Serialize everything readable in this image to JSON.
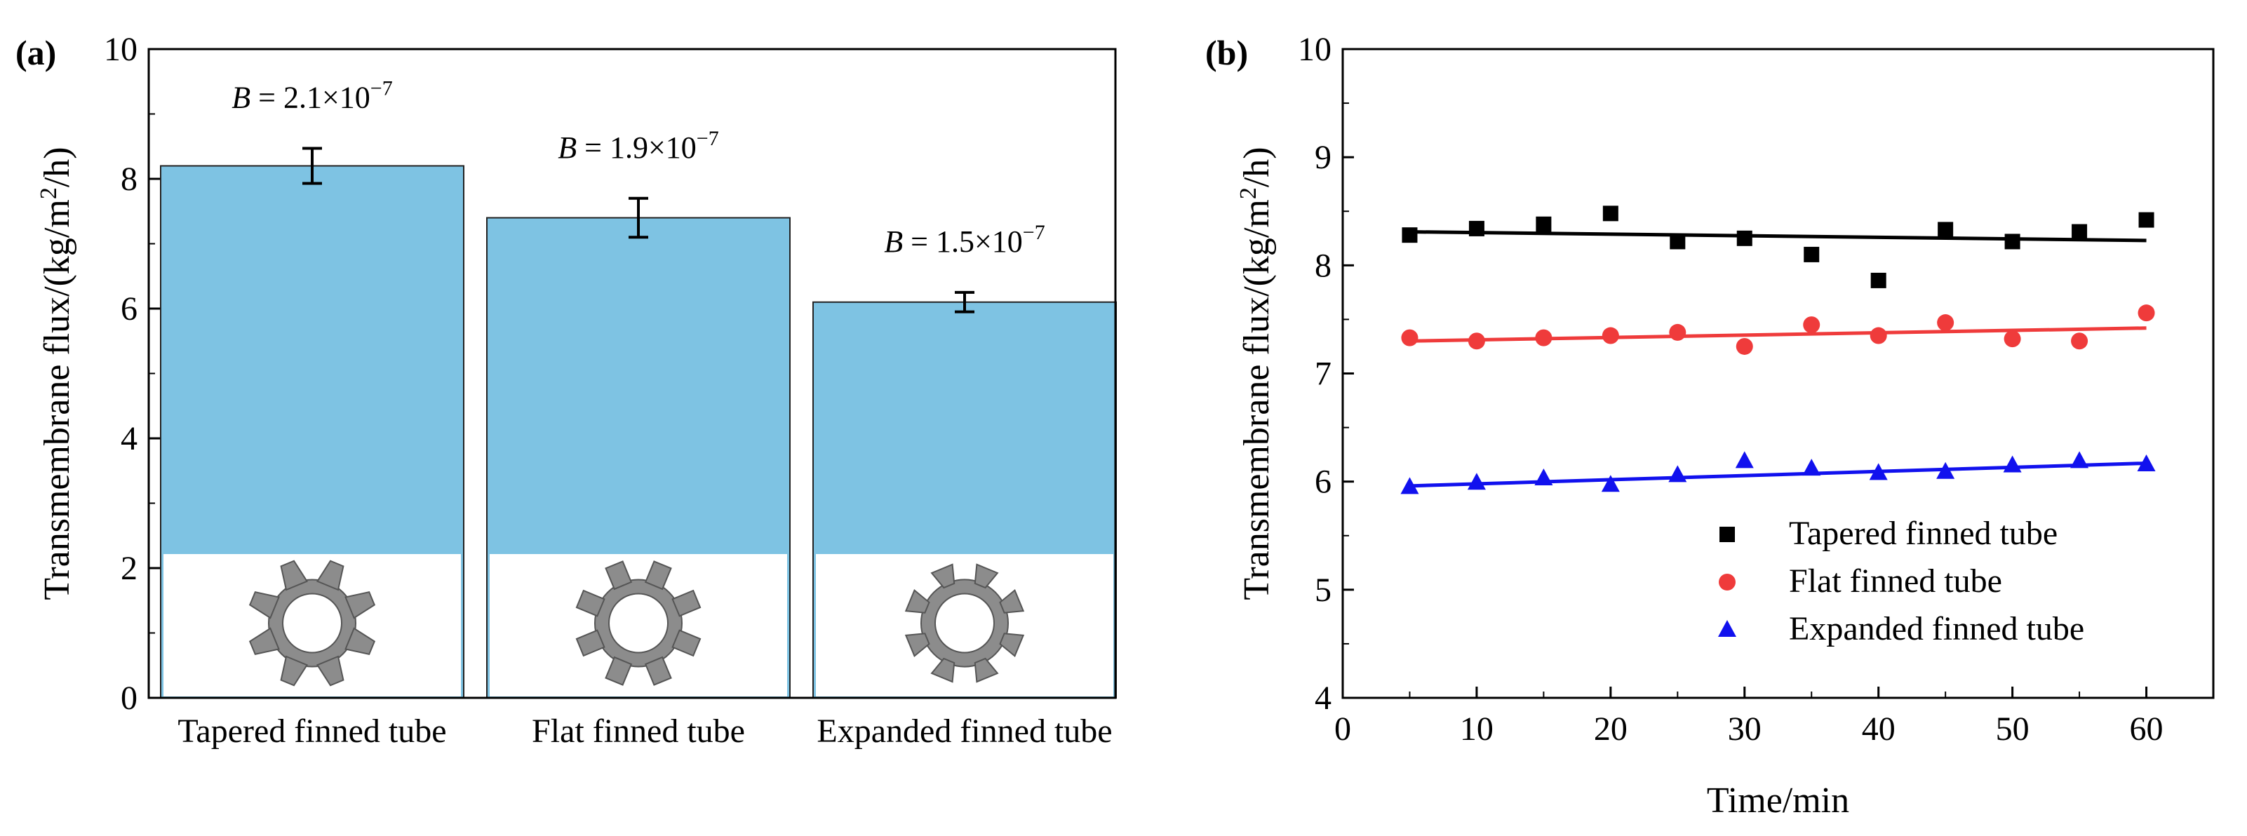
{
  "chart_data": [
    {
      "panel": "(a)",
      "type": "bar",
      "title": "",
      "xlabel": "",
      "ylabel": "Transmembrane flux/(kg/m²/h)",
      "ylim": [
        0,
        10
      ],
      "yticks": [
        "0",
        "2",
        "4",
        "6",
        "8",
        "10"
      ],
      "categories": [
        "Tapered finned tube",
        "Flat finned tube",
        "Expanded finned tube"
      ],
      "values": [
        8.2,
        7.4,
        6.1
      ],
      "errors": [
        0.27,
        0.3,
        0.15
      ],
      "annotations": [
        {
          "symbol": "B",
          "text": "= 2.1×10",
          "exp": "−7"
        },
        {
          "symbol": "B",
          "text": "= 1.9×10",
          "exp": "−7"
        },
        {
          "symbol": "B",
          "text": "= 1.5×10",
          "exp": "−7"
        }
      ],
      "insets": [
        "tapered-fin-cross-section",
        "flat-fin-cross-section",
        "expanded-fin-cross-section"
      ],
      "colors": {
        "bar": "#7EC3E3",
        "bar_edge": "#222222",
        "inset_fill": "#8C8C8C"
      }
    },
    {
      "panel": "(b)",
      "type": "scatter",
      "title": "",
      "xlabel": "Time/min",
      "ylabel": "Transmembrane flux/(kg/m²/h)",
      "xlim": [
        0,
        65
      ],
      "ylim": [
        4,
        10
      ],
      "xticks": [
        "0",
        "10",
        "20",
        "30",
        "40",
        "50",
        "60"
      ],
      "yticks": [
        "4",
        "5",
        "6",
        "7",
        "8",
        "9",
        "10"
      ],
      "legend_position": "bottom-right",
      "series": [
        {
          "name": "Tapered finned tube",
          "marker": "square",
          "color": "#000000",
          "x": [
            5,
            10,
            15,
            20,
            25,
            30,
            35,
            40,
            45,
            50,
            55,
            60
          ],
          "y": [
            8.28,
            8.34,
            8.38,
            8.48,
            8.22,
            8.25,
            8.1,
            7.86,
            8.33,
            8.22,
            8.31,
            8.42
          ],
          "fit": [
            [
              5,
              8.31
            ],
            [
              60,
              8.23
            ]
          ]
        },
        {
          "name": "Flat finned tube",
          "marker": "circle",
          "color": "#EF3B3B",
          "x": [
            5,
            10,
            15,
            20,
            25,
            30,
            35,
            40,
            45,
            50,
            55,
            60
          ],
          "y": [
            7.33,
            7.3,
            7.33,
            7.35,
            7.38,
            7.25,
            7.45,
            7.35,
            7.47,
            7.32,
            7.3,
            7.56
          ],
          "fit": [
            [
              5,
              7.3
            ],
            [
              60,
              7.42
            ]
          ]
        },
        {
          "name": "Expanded finned tube",
          "marker": "triangle",
          "color": "#1111EE",
          "x": [
            5,
            10,
            15,
            20,
            25,
            30,
            35,
            40,
            45,
            50,
            55,
            60
          ],
          "y": [
            5.95,
            5.99,
            6.03,
            5.97,
            6.06,
            6.19,
            6.12,
            6.08,
            6.09,
            6.15,
            6.19,
            6.16
          ],
          "fit": [
            [
              5,
              5.96
            ],
            [
              60,
              6.17
            ]
          ]
        }
      ]
    }
  ]
}
